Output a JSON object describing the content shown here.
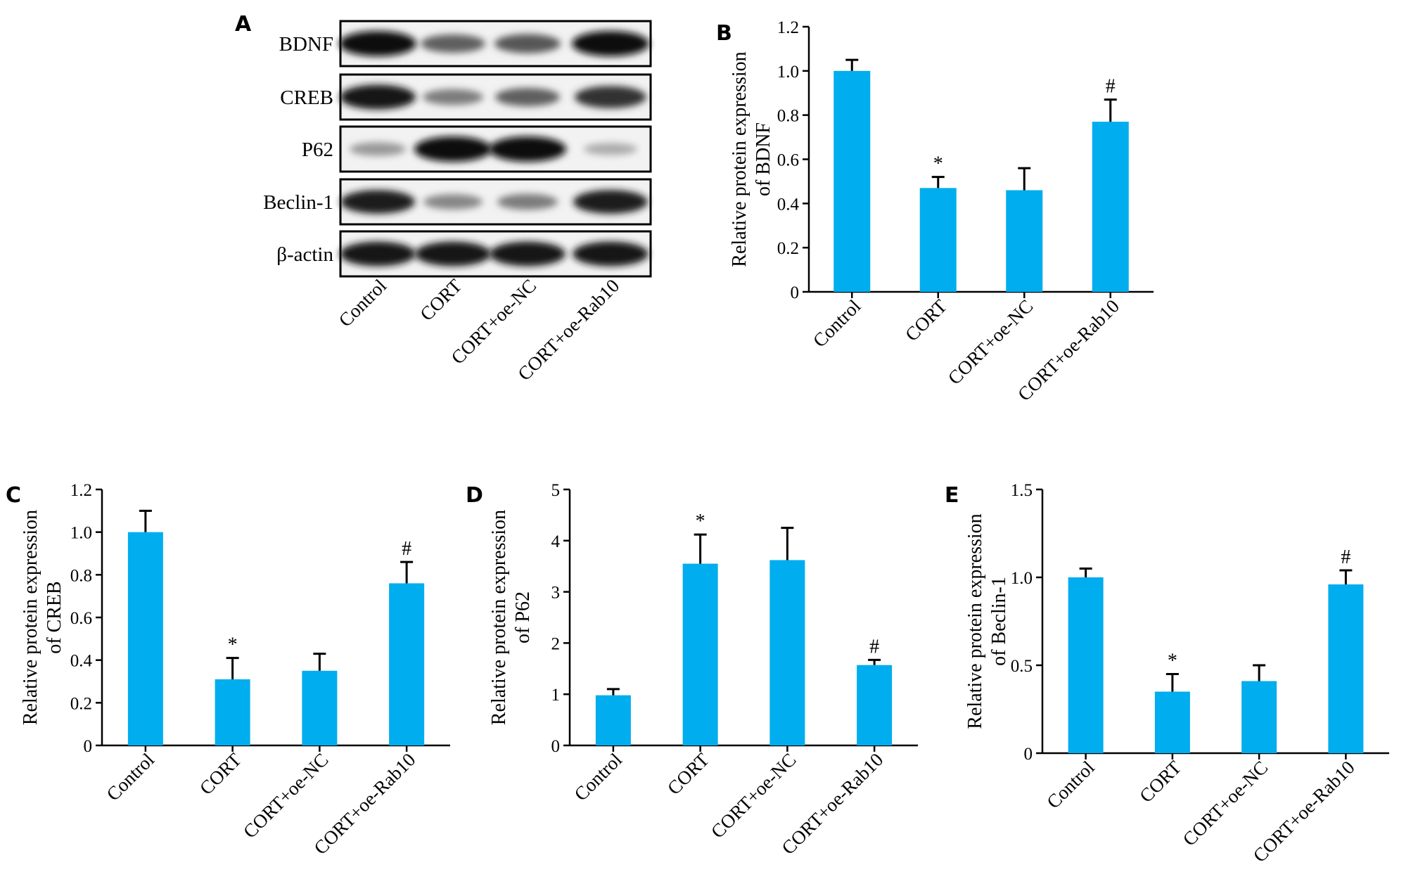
{
  "blot": {
    "panel_letter": "A",
    "rows": [
      "BDNF",
      "CREB",
      "P62",
      "Beclin-1",
      "β-actin"
    ],
    "lanes": [
      "Control",
      "CORT",
      "CORT+oe-NC",
      "CORT+oe-Rab10"
    ],
    "band_intensity": [
      [
        1.0,
        0.55,
        0.6,
        1.0
      ],
      [
        0.95,
        0.4,
        0.55,
        0.8
      ],
      [
        0.25,
        1.0,
        1.0,
        0.15
      ],
      [
        0.9,
        0.35,
        0.4,
        0.9
      ],
      [
        0.95,
        0.95,
        0.95,
        0.95
      ]
    ]
  },
  "chart_data": [
    {
      "panel": "B",
      "type": "bar",
      "categories": [
        "Control",
        "CORT",
        "CORT+oe-NC",
        "CORT+oe-Rab10"
      ],
      "values": [
        1.0,
        0.47,
        0.46,
        0.77
      ],
      "errors": [
        0.05,
        0.05,
        0.1,
        0.1
      ],
      "significance": [
        "",
        "*",
        "",
        "#"
      ],
      "ylabel": [
        "Relative protein expression",
        "of BDNF"
      ],
      "ylim": [
        0,
        1.2
      ],
      "yticks": [
        0,
        0.2,
        0.4,
        0.6,
        0.8,
        1.0,
        1.2
      ],
      "ytick_labels": [
        "0",
        "0.2",
        "0.4",
        "0.6",
        "0.8",
        "1.0",
        "1.2"
      ],
      "bar_color": "#00adee"
    },
    {
      "panel": "C",
      "type": "bar",
      "categories": [
        "Control",
        "CORT",
        "CORT+oe-NC",
        "CORT+oe-Rab10"
      ],
      "values": [
        1.0,
        0.31,
        0.35,
        0.76
      ],
      "errors": [
        0.1,
        0.1,
        0.08,
        0.1
      ],
      "significance": [
        "",
        "*",
        "",
        "#"
      ],
      "ylabel": [
        "Relative protein expression",
        "of CREB"
      ],
      "ylim": [
        0,
        1.2
      ],
      "yticks": [
        0,
        0.2,
        0.4,
        0.6,
        0.8,
        1.0,
        1.2
      ],
      "ytick_labels": [
        "0",
        "0.2",
        "0.4",
        "0.6",
        "0.8",
        "1.0",
        "1.2"
      ],
      "bar_color": "#00adee"
    },
    {
      "panel": "D",
      "type": "bar",
      "categories": [
        "Control",
        "CORT",
        "CORT+oe-NC",
        "CORT+oe-Rab10"
      ],
      "values": [
        0.98,
        3.55,
        3.62,
        1.57
      ],
      "errors": [
        0.12,
        0.57,
        0.63,
        0.1
      ],
      "significance": [
        "",
        "*",
        "",
        "#"
      ],
      "ylabel": [
        "Relative protein expression",
        "of P62"
      ],
      "ylim": [
        0,
        5
      ],
      "yticks": [
        0,
        1,
        2,
        3,
        4,
        5
      ],
      "ytick_labels": [
        "0",
        "1",
        "2",
        "3",
        "4",
        "5"
      ],
      "bar_color": "#00adee"
    },
    {
      "panel": "E",
      "type": "bar",
      "categories": [
        "Control",
        "CORT",
        "CORT+oe-NC",
        "CORT+oe-Rab10"
      ],
      "values": [
        1.0,
        0.35,
        0.41,
        0.96
      ],
      "errors": [
        0.05,
        0.1,
        0.09,
        0.08
      ],
      "significance": [
        "",
        "*",
        "",
        "#"
      ],
      "ylabel": [
        "Relative protein expression",
        "of Beclin-1"
      ],
      "ylim": [
        0,
        1.5
      ],
      "yticks": [
        0,
        0.5,
        1.0,
        1.5
      ],
      "ytick_labels": [
        "0",
        "0.5",
        "1.0",
        "1.5"
      ],
      "bar_color": "#00adee"
    }
  ]
}
